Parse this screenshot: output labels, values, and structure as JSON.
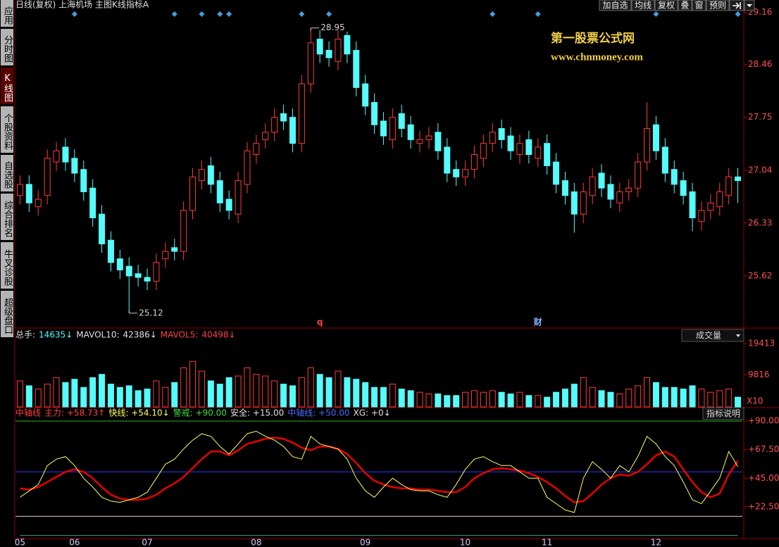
{
  "toolbar": {
    "title": "日线(复权)  上海机场  主图K线指标A",
    "buttons": [
      "加自选",
      "均线",
      "复权",
      "叠",
      "窗",
      "预则"
    ]
  },
  "sidebar": {
    "items": [
      "应用",
      "分时图",
      "K线图",
      "个股资料",
      "自选股",
      "综合排名",
      "牛叉诊股",
      "超级盘口"
    ],
    "active": 2
  },
  "watermark": {
    "title": "第一股票公式网",
    "url": "www.chnmoney.com"
  },
  "chart_data": [
    {
      "type": "candlestick",
      "open": [
        26.7,
        26.85,
        26.55,
        26.7,
        27.15,
        27.35,
        27.2,
        27.05,
        26.8,
        26.45,
        26.1,
        25.85,
        25.75,
        25.65,
        25.6,
        25.55,
        25.85,
        26.0,
        25.95,
        26.5,
        26.9,
        27.1,
        26.9,
        26.65,
        26.45,
        26.85,
        27.25,
        27.45,
        27.55,
        27.8,
        27.75,
        27.4,
        28.2,
        28.8,
        28.65,
        28.5,
        28.85,
        28.65,
        28.2,
        27.95,
        27.7,
        27.45,
        27.8,
        27.65,
        27.4,
        27.45,
        27.55,
        27.35,
        27.05,
        26.95,
        27.05,
        27.2,
        27.4,
        27.6,
        27.5,
        27.25,
        27.45,
        27.2,
        27.4,
        27.15,
        26.9,
        26.75,
        26.45,
        26.7,
        27.0,
        26.85,
        26.6,
        26.75,
        26.8,
        27.15,
        27.65,
        27.35,
        27.05,
        26.9,
        26.75,
        26.35,
        26.5,
        26.55,
        26.7,
        26.95
      ],
      "high": [
        26.97,
        26.97,
        26.77,
        27.32,
        27.42,
        27.47,
        27.32,
        27.17,
        26.92,
        26.57,
        26.22,
        25.97,
        25.87,
        25.77,
        25.72,
        25.92,
        26.07,
        26.12,
        26.62,
        27.07,
        27.17,
        27.22,
        27.02,
        26.77,
        27.02,
        27.42,
        27.52,
        27.67,
        27.87,
        27.92,
        27.87,
        28.32,
        28.95,
        28.92,
        28.77,
        28.92,
        28.9,
        28.77,
        28.32,
        28.07,
        27.82,
        27.87,
        27.92,
        27.77,
        27.57,
        27.62,
        27.67,
        27.47,
        27.17,
        27.17,
        27.37,
        27.52,
        27.67,
        27.72,
        27.62,
        27.52,
        27.57,
        27.47,
        27.52,
        27.27,
        27.02,
        26.87,
        26.87,
        27.07,
        27.12,
        26.97,
        26.87,
        26.92,
        27.27,
        27.95,
        27.77,
        27.47,
        27.17,
        27.02,
        26.87,
        26.62,
        26.72,
        26.87,
        27.07,
        27.07
      ],
      "low": [
        26.58,
        26.48,
        26.43,
        26.58,
        27.03,
        27.03,
        26.88,
        26.63,
        26.28,
        25.93,
        25.68,
        25.58,
        25.12,
        25.48,
        25.43,
        25.43,
        25.73,
        25.83,
        25.83,
        26.38,
        26.78,
        26.73,
        26.48,
        26.38,
        26.33,
        26.73,
        27.13,
        27.33,
        27.43,
        27.58,
        27.28,
        27.28,
        28.08,
        28.48,
        28.43,
        28.38,
        28.48,
        28.03,
        27.78,
        27.53,
        27.38,
        27.33,
        27.48,
        27.33,
        27.28,
        27.33,
        27.18,
        26.88,
        26.83,
        26.83,
        26.93,
        27.08,
        27.28,
        27.33,
        27.18,
        27.13,
        27.13,
        27.08,
        26.98,
        26.73,
        26.58,
        26.2,
        26.33,
        26.58,
        26.68,
        26.53,
        26.48,
        26.63,
        26.68,
        27.03,
        27.18,
        26.88,
        26.73,
        26.58,
        26.22,
        26.23,
        26.38,
        26.43,
        26.58,
        26.6
      ],
      "close": [
        26.85,
        26.6,
        26.65,
        27.2,
        27.3,
        27.15,
        27.0,
        26.75,
        26.4,
        26.05,
        25.8,
        25.7,
        25.62,
        25.6,
        25.55,
        25.8,
        25.95,
        25.95,
        26.5,
        26.95,
        27.05,
        26.85,
        26.6,
        26.5,
        26.9,
        27.3,
        27.4,
        27.55,
        27.75,
        27.7,
        27.4,
        28.2,
        28.75,
        28.6,
        28.55,
        28.8,
        28.6,
        28.15,
        27.9,
        27.65,
        27.5,
        27.75,
        27.6,
        27.45,
        27.45,
        27.5,
        27.3,
        27.0,
        26.95,
        27.05,
        27.25,
        27.4,
        27.55,
        27.45,
        27.3,
        27.4,
        27.25,
        27.35,
        27.1,
        26.85,
        26.7,
        26.45,
        26.75,
        26.95,
        26.8,
        26.65,
        26.75,
        26.8,
        27.15,
        27.6,
        27.3,
        27.0,
        26.85,
        26.7,
        26.4,
        26.5,
        26.6,
        26.75,
        26.95,
        26.9
      ],
      "up_color": "#ff3c3c",
      "down_color": "#54fcfc",
      "ylim": [
        24.92,
        29.25
      ],
      "yticks": [
        29.16,
        28.46,
        27.75,
        27.04,
        26.33,
        25.62
      ],
      "signals": [
        6,
        17,
        20,
        22,
        23,
        31,
        34,
        52,
        57,
        70,
        79
      ],
      "signal_color": "#3fa0e0",
      "events": [
        {
          "index": 33,
          "label": "q",
          "color": "#ff4040"
        },
        {
          "index": 57,
          "label": "财",
          "color": "#7fb0ff"
        }
      ],
      "high_mark": 32,
      "low_mark": 12
    },
    {
      "type": "bar",
      "header": [
        {
          "text": "总手:",
          "color": "#e0e0e0"
        },
        {
          "text": "14635↓",
          "color": "#54fcfc"
        },
        {
          "text": "MAVOL10:",
          "color": "#e0e0e0"
        },
        {
          "text": "42386↓",
          "color": "#e0e0e0"
        },
        {
          "text": "MAVOL5:",
          "color": "#ff4040"
        },
        {
          "text": "40498↓",
          "color": "#ff4040"
        }
      ],
      "panel_label": "成交量",
      "values": [
        8000,
        6500,
        5500,
        7000,
        9000,
        7500,
        8500,
        6000,
        9000,
        10000,
        7000,
        6000,
        6500,
        5000,
        5500,
        8000,
        6000,
        7500,
        12000,
        14000,
        11000,
        8000,
        7000,
        9000,
        9500,
        12000,
        10000,
        9500,
        8000,
        7000,
        6500,
        9000,
        12000,
        10000,
        9000,
        11000,
        9000,
        8500,
        7500,
        6000,
        6000,
        7000,
        5500,
        5000,
        4500,
        4000,
        4000,
        3500,
        3500,
        4500,
        5000,
        4500,
        5000,
        4500,
        4000,
        4500,
        3500,
        3500,
        3000,
        4500,
        5500,
        7000,
        9000,
        6000,
        5000,
        4500,
        4000,
        5500,
        6500,
        9000,
        7500,
        6000,
        6000,
        5500,
        6500,
        5500,
        4500,
        5000,
        5500,
        3000
      ],
      "ylim": [
        0,
        24000
      ],
      "yticks": [
        19413,
        9816
      ],
      "unit_label": "X10"
    },
    {
      "type": "line",
      "header": [
        {
          "text": "中轴线",
          "color": "#ff4040"
        },
        {
          "text": "主力: +58.73↑",
          "color": "#ff4040"
        },
        {
          "text": "快线: +54.10↓",
          "color": "#ffff60"
        },
        {
          "text": "警戒: +90.00",
          "color": "#3fdf3f"
        },
        {
          "text": "安全: +15.00",
          "color": "#e0e0e0"
        },
        {
          "text": "中轴线: +50.00",
          "color": "#4a6aff"
        },
        {
          "text": "XG: +0↓",
          "color": "#e0e0e0"
        }
      ],
      "panel_label": "指标说明",
      "categories": [
        "05",
        null,
        null,
        null,
        null,
        null,
        "06",
        null,
        null,
        null,
        null,
        null,
        null,
        null,
        "07",
        null,
        null,
        null,
        null,
        null,
        null,
        null,
        null,
        null,
        null,
        null,
        "08",
        null,
        null,
        null,
        null,
        null,
        null,
        null,
        null,
        null,
        null,
        null,
        "09",
        null,
        null,
        null,
        null,
        null,
        null,
        null,
        null,
        null,
        null,
        "10",
        null,
        null,
        null,
        null,
        null,
        null,
        null,
        null,
        "11",
        null,
        null,
        null,
        null,
        null,
        null,
        null,
        null,
        null,
        null,
        null,
        "12",
        null,
        null,
        null,
        null,
        null,
        null,
        null,
        null,
        null
      ],
      "series": [
        {
          "color": "#e80000",
          "width": 2.5,
          "values": [
            37,
            36,
            38,
            42,
            46,
            50,
            52,
            50,
            45,
            38,
            32,
            29,
            28,
            28,
            29,
            32,
            37,
            41,
            46,
            53,
            60,
            66,
            66,
            63,
            67,
            72,
            74,
            76,
            77,
            76,
            73,
            69,
            67,
            70,
            70,
            68,
            64,
            57,
            49,
            43,
            40,
            38,
            37,
            37,
            36,
            36,
            35,
            34,
            34,
            38,
            45,
            49,
            52,
            53,
            52,
            51,
            49,
            46,
            42,
            37,
            31,
            26,
            27,
            33,
            40,
            45,
            48,
            47,
            50,
            56,
            63,
            66,
            62,
            52,
            42,
            34,
            30,
            33,
            48,
            58.73
          ]
        },
        {
          "color": "#ffff60",
          "width": 1,
          "values": [
            30,
            35,
            40,
            55,
            60,
            62,
            55,
            45,
            38,
            30,
            27,
            26,
            28,
            30,
            34,
            45,
            56,
            60,
            68,
            75,
            80,
            78,
            70,
            64,
            72,
            80,
            82,
            78,
            75,
            70,
            62,
            60,
            78,
            72,
            70,
            68,
            60,
            45,
            35,
            30,
            38,
            45,
            40,
            36,
            35,
            35,
            32,
            30,
            40,
            52,
            60,
            62,
            58,
            55,
            55,
            50,
            45,
            45,
            30,
            25,
            20,
            18,
            45,
            58,
            52,
            45,
            55,
            50,
            62,
            78,
            72,
            62,
            55,
            42,
            28,
            25,
            35,
            45,
            66,
            54.1
          ]
        },
        {
          "color": "#3a8a8a",
          "width": 1,
          "values": [
            0,
            0,
            0,
            0,
            0,
            0,
            0,
            0,
            0,
            0,
            0,
            0,
            0,
            0,
            0,
            0,
            0,
            0,
            0,
            0,
            0,
            0,
            0,
            0,
            0,
            0,
            0,
            0,
            0,
            0,
            0,
            0,
            0,
            0,
            0,
            0,
            0,
            0,
            0,
            0,
            0,
            0,
            0,
            0,
            0,
            0,
            0,
            0,
            0,
            0,
            0,
            0,
            0,
            0,
            0,
            0,
            0,
            0,
            0,
            0,
            0,
            0,
            0,
            0,
            0,
            0,
            0,
            0,
            0,
            0,
            0,
            0,
            0,
            0,
            0,
            0,
            0,
            0,
            0,
            0
          ]
        }
      ],
      "reference_lines": [
        {
          "value": 90,
          "color": "#2faf2f"
        },
        {
          "value": 50,
          "color": "#2a3aff"
        },
        {
          "value": 15,
          "color": "#e8c8c8"
        }
      ],
      "ylim": [
        -2.5,
        95.6
      ],
      "yticks": [
        {
          "value": 90,
          "label": "+90.00"
        },
        {
          "value": 67.5,
          "label": "+67.50"
        },
        {
          "value": 45,
          "label": "+45.00"
        },
        {
          "value": 22.5,
          "label": "+22.50"
        }
      ]
    }
  ]
}
